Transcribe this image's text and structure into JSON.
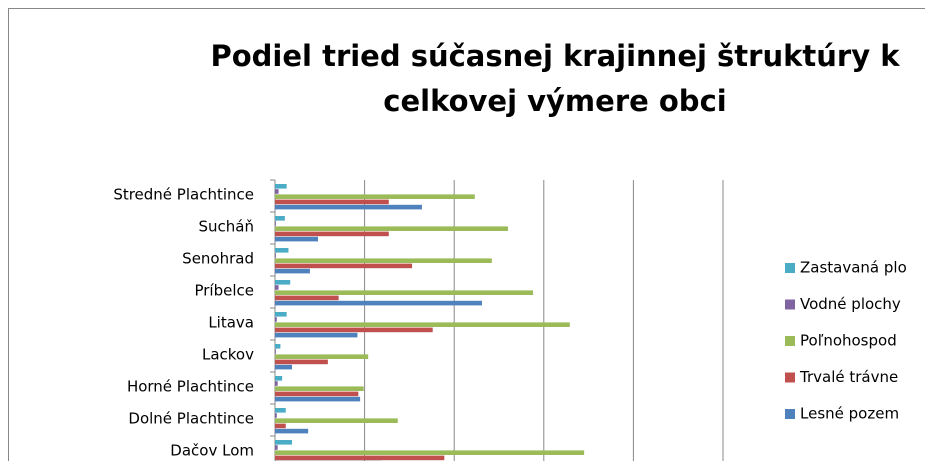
{
  "chart_data": {
    "type": "bar",
    "orientation": "horizontal",
    "title": "Podiel tried súčasnej krajinnej štruktúry k celkovej výmere obci",
    "categories": [
      "Stredné Plachtince",
      "Sucháň",
      "Senohrad",
      "Príbelce",
      "Litava",
      "Lackov",
      "Horné Plachtince",
      "Dolné Plachtince",
      "Dačov Lom"
    ],
    "series": [
      {
        "name": "Zastavaná plo",
        "color": "#4bacc6",
        "values": [
          1.3,
          1.1,
          1.5,
          1.7,
          1.3,
          0.6,
          0.8,
          1.2,
          1.9
        ]
      },
      {
        "name": "Vodné plochy",
        "color": "#8064a2",
        "values": [
          0.4,
          0.1,
          0.1,
          0.4,
          0.2,
          0.1,
          0.3,
          0.2,
          0.3
        ]
      },
      {
        "name": "Poľnohospod",
        "color": "#9bbb59",
        "values": [
          22.3,
          26,
          24.2,
          28.8,
          32.9,
          10.4,
          9.9,
          13.7,
          34.5
        ]
      },
      {
        "name": "Trvalé trávne",
        "color": "#c0504d",
        "values": [
          12.7,
          12.7,
          15.3,
          7.1,
          17.6,
          5.9,
          9.3,
          1.2,
          18.9
        ]
      },
      {
        "name": "Lesné pozem",
        "color": "#4f81bd",
        "values": [
          16.4,
          4.8,
          3.9,
          23.1,
          9.2,
          1.9,
          9.5,
          3.7,
          11.8
        ]
      }
    ],
    "xlim": [
      0,
      50
    ],
    "xticks": [
      0,
      10,
      20,
      30,
      40,
      50
    ],
    "grid": true,
    "legend": "right"
  }
}
